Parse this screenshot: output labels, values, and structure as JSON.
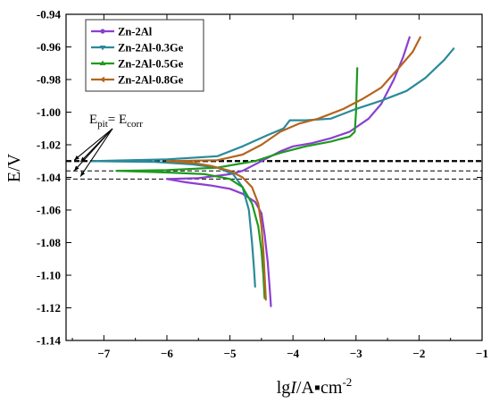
{
  "chart_data": {
    "type": "line",
    "xlabel": "lgI/A▪cm⁻²",
    "xlabel_parts": {
      "prefix": "lg",
      "italic": "I",
      "suffix": "/A▪cm",
      "sup": "-2"
    },
    "ylabel": "E/V",
    "xlim": [
      -7.6,
      -1.0
    ],
    "ylim": [
      -1.14,
      -0.94
    ],
    "x_ticks": [
      -7,
      -6,
      -5,
      -4,
      -3,
      -2,
      -1
    ],
    "y_ticks": [
      -0.94,
      -0.96,
      -0.98,
      -1.0,
      -1.02,
      -1.04,
      -1.06,
      -1.08,
      -1.1,
      -1.12,
      -1.14
    ],
    "y_tick_labels": [
      "-0.94",
      "-0.96",
      "-0.98",
      "-1.00",
      "-1.02",
      "-1.04",
      "-1.06",
      "-1.08",
      "-1.10",
      "-1.12",
      "-1.14"
    ],
    "legend_position": "top-left",
    "annotation": {
      "text_main": "E",
      "sub1": "pit",
      "eq": "= E",
      "sub2": "corr",
      "arrow_targets": [
        [
          -7.5,
          -1.0295
        ],
        [
          -7.4,
          -1.0305
        ],
        [
          -7.5,
          -1.036
        ],
        [
          -7.4,
          -1.0395
        ]
      ]
    },
    "reference_lines": [
      {
        "y": -1.03,
        "style": "dashed-bold"
      },
      {
        "y": -1.036,
        "style": "dashed"
      },
      {
        "y": -1.041,
        "style": "dashed"
      }
    ],
    "series": [
      {
        "name": "Zn-2Al",
        "color": "#8a3fd1",
        "marker": "circle",
        "anodic": [
          [
            -6.0,
            -1.041
          ],
          [
            -5.5,
            -1.0405
          ],
          [
            -5.0,
            -1.038
          ],
          [
            -4.8,
            -1.036
          ],
          [
            -4.5,
            -1.03
          ],
          [
            -4.2,
            -1.024
          ],
          [
            -4.0,
            -1.021
          ],
          [
            -3.7,
            -1.019
          ],
          [
            -3.4,
            -1.016
          ],
          [
            -3.1,
            -1.012
          ],
          [
            -2.8,
            -1.004
          ],
          [
            -2.6,
            -0.995
          ],
          [
            -2.4,
            -0.98
          ],
          [
            -2.25,
            -0.966
          ],
          [
            -2.15,
            -0.954
          ]
        ],
        "cathodic": [
          [
            -6.0,
            -1.041
          ],
          [
            -5.7,
            -1.043
          ],
          [
            -5.3,
            -1.045
          ],
          [
            -5.0,
            -1.047
          ],
          [
            -4.8,
            -1.05
          ],
          [
            -4.6,
            -1.055
          ],
          [
            -4.5,
            -1.062
          ],
          [
            -4.45,
            -1.075
          ],
          [
            -4.4,
            -1.092
          ],
          [
            -4.37,
            -1.108
          ],
          [
            -4.35,
            -1.119
          ]
        ]
      },
      {
        "name": "Zn-2Al-0.3Ge",
        "color": "#2a8a9a",
        "marker": "triangle-down",
        "anodic": [
          [
            -7.2,
            -1.03
          ],
          [
            -6.0,
            -1.029
          ],
          [
            -5.2,
            -1.027
          ],
          [
            -4.8,
            -1.021
          ],
          [
            -4.4,
            -1.014
          ],
          [
            -4.15,
            -1.01
          ],
          [
            -4.05,
            -1.005
          ],
          [
            -3.8,
            -1.005
          ],
          [
            -3.4,
            -1.004
          ],
          [
            -3.0,
            -0.998
          ],
          [
            -2.6,
            -0.993
          ],
          [
            -2.2,
            -0.987
          ],
          [
            -1.9,
            -0.979
          ],
          [
            -1.6,
            -0.968
          ],
          [
            -1.45,
            -0.961
          ]
        ],
        "cathodic": [
          [
            -7.2,
            -1.03
          ],
          [
            -6.2,
            -1.0305
          ],
          [
            -5.6,
            -1.032
          ],
          [
            -5.2,
            -1.034
          ],
          [
            -4.95,
            -1.038
          ],
          [
            -4.8,
            -1.046
          ],
          [
            -4.7,
            -1.06
          ],
          [
            -4.65,
            -1.08
          ],
          [
            -4.62,
            -1.095
          ],
          [
            -4.6,
            -1.107
          ]
        ]
      },
      {
        "name": "Zn-2Al-0.5Ge",
        "color": "#1e9a1e",
        "marker": "triangle-up",
        "anodic": [
          [
            -6.8,
            -1.036
          ],
          [
            -6.0,
            -1.0355
          ],
          [
            -5.2,
            -1.034
          ],
          [
            -4.6,
            -1.03
          ],
          [
            -4.2,
            -1.025
          ],
          [
            -3.8,
            -1.021
          ],
          [
            -3.4,
            -1.018
          ],
          [
            -3.1,
            -1.015
          ],
          [
            -3.02,
            -1.012
          ],
          [
            -3.0,
            -1.0
          ],
          [
            -2.99,
            -0.985
          ],
          [
            -2.98,
            -0.973
          ]
        ],
        "cathodic": [
          [
            -6.8,
            -1.036
          ],
          [
            -6.0,
            -1.037
          ],
          [
            -5.4,
            -1.038
          ],
          [
            -5.0,
            -1.041
          ],
          [
            -4.8,
            -1.046
          ],
          [
            -4.65,
            -1.056
          ],
          [
            -4.55,
            -1.07
          ],
          [
            -4.5,
            -1.085
          ],
          [
            -4.47,
            -1.1
          ],
          [
            -4.45,
            -1.114
          ]
        ]
      },
      {
        "name": "Zn-2Al-0.8Ge",
        "color": "#b5651d",
        "marker": "triangle-left",
        "anodic": [
          [
            -6.0,
            -1.03
          ],
          [
            -5.2,
            -1.0295
          ],
          [
            -4.8,
            -1.026
          ],
          [
            -4.5,
            -1.02
          ],
          [
            -4.2,
            -1.012
          ],
          [
            -3.9,
            -1.007
          ],
          [
            -3.6,
            -1.004
          ],
          [
            -3.2,
            -0.998
          ],
          [
            -2.9,
            -0.992
          ],
          [
            -2.6,
            -0.985
          ],
          [
            -2.3,
            -0.972
          ],
          [
            -2.1,
            -0.963
          ],
          [
            -1.98,
            -0.954
          ]
        ],
        "cathodic": [
          [
            -6.0,
            -1.03
          ],
          [
            -5.6,
            -1.031
          ],
          [
            -5.3,
            -1.033
          ],
          [
            -5.0,
            -1.036
          ],
          [
            -4.8,
            -1.04
          ],
          [
            -4.65,
            -1.046
          ],
          [
            -4.55,
            -1.056
          ],
          [
            -4.5,
            -1.07
          ],
          [
            -4.47,
            -1.085
          ],
          [
            -4.45,
            -1.1
          ],
          [
            -4.43,
            -1.115
          ]
        ]
      }
    ]
  }
}
